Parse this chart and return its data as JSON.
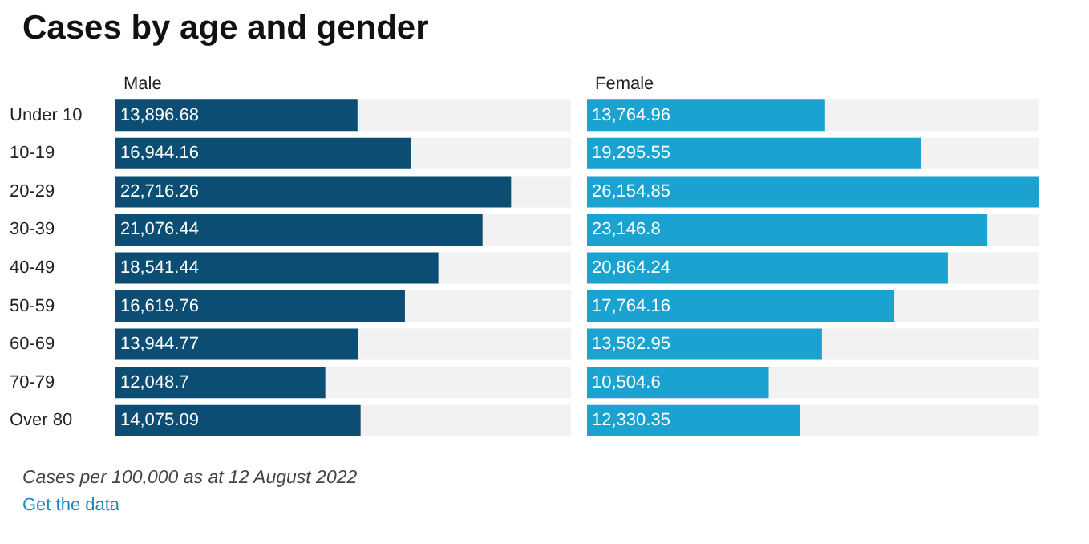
{
  "chart_data": [
    {
      "type": "bar",
      "title": "Cases by age and gender",
      "subtitle": "Male",
      "orientation": "horizontal",
      "tick_labels": "y",
      "color": "#0c4d73",
      "categories": [
        "Under 10",
        "10-19",
        "20-29",
        "30-39",
        "40-49",
        "50-59",
        "60-69",
        "70-79",
        "Over 80"
      ],
      "values": [
        13896.68,
        16944.16,
        22716.26,
        21076.44,
        18541.44,
        16619.76,
        13944.77,
        12048.7,
        14075.09
      ],
      "value_labels": [
        "13,896.68",
        "16,944.16",
        "22,716.26",
        "21,076.44",
        "18,541.44",
        "16,619.76",
        "13,944.77",
        "12,048.7",
        "14,075.09"
      ],
      "annotations": [
        "Cases per 100,000 as at 12 August 2022",
        "Get the data"
      ]
    },
    {
      "type": "bar",
      "subtitle": "Female",
      "orientation": "horizontal",
      "tick_labels": false,
      "color": "#1aa3d1",
      "categories": [
        null,
        null,
        null,
        null,
        null,
        null,
        null,
        null,
        null
      ],
      "values": [
        13764.96,
        19295.55,
        26154.85,
        23146.8,
        20864.24,
        17764.16,
        13582.95,
        10504.6,
        12330.35
      ],
      "value_labels": [
        "13,764.96",
        "19,295.55",
        "26,154.85",
        "23,146.8",
        "20,864.24",
        "17,764.16",
        "13,582.95",
        "10,504.6",
        "12,330.35"
      ]
    }
  ]
}
